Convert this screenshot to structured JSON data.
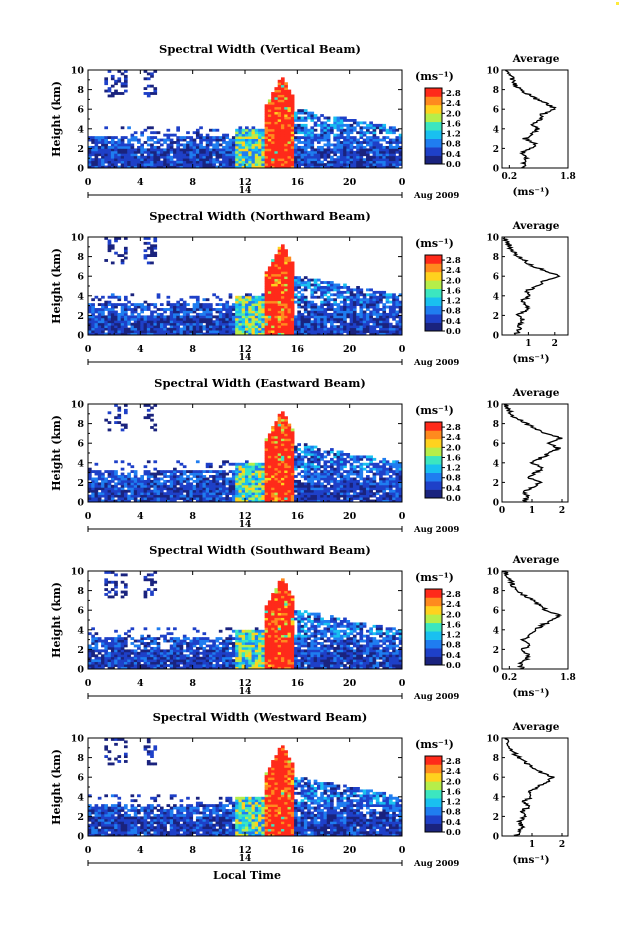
{
  "figure": {
    "x_axis_label": "Local Time",
    "date_marker": "14",
    "date_label": "Aug 2009",
    "unit_label": "(ms⁻¹)",
    "avg_xunit": "(ms⁻¹)",
    "ylabel": "Height (km)"
  },
  "chart_data": [
    {
      "type": "heatmap",
      "title": "Spectral Width (Vertical Beam)",
      "xlabel": "",
      "ylabel": "Height (km)",
      "xticks": [
        "0",
        "4",
        "8",
        "12",
        "16",
        "20",
        "0"
      ],
      "xlim": [
        0,
        24
      ],
      "yticks": [
        "0",
        "2",
        "4",
        "6",
        "8",
        "10"
      ],
      "ylim": [
        0,
        10
      ],
      "colorbar": {
        "ticks": [
          "0.0",
          "0.4",
          "0.8",
          "1.2",
          "1.6",
          "2.0",
          "2.4",
          "2.8"
        ],
        "range": [
          0,
          3.0
        ]
      },
      "average": {
        "title": "Average",
        "xlim": [
          0,
          1.8
        ],
        "xticks": [
          "0.2",
          "1.8"
        ],
        "xlabel": "(ms⁻¹)",
        "height": [
          0,
          0.5,
          1,
          1.5,
          2,
          2.5,
          3,
          3.5,
          4,
          4.5,
          5,
          5.5,
          6,
          6.5,
          7,
          7.5,
          8,
          8.5,
          9,
          9.5,
          10
        ],
        "value": [
          0.55,
          0.6,
          0.7,
          0.55,
          0.75,
          0.95,
          0.6,
          0.85,
          1.0,
          0.8,
          1.05,
          1.1,
          1.45,
          1.25,
          0.95,
          0.75,
          0.5,
          0.35,
          0.3,
          0.2,
          0.15
        ]
      }
    },
    {
      "type": "heatmap",
      "title": "Spectral Width (Northward Beam)",
      "xlabel": "",
      "ylabel": "Height (km)",
      "xticks": [
        "0",
        "4",
        "8",
        "12",
        "16",
        "20",
        "0"
      ],
      "xlim": [
        0,
        24
      ],
      "yticks": [
        "0",
        "2",
        "4",
        "6",
        "8",
        "10"
      ],
      "ylim": [
        0,
        10
      ],
      "colorbar": {
        "ticks": [
          "0.0",
          "0.4",
          "0.8",
          "1.2",
          "1.6",
          "2.0",
          "2.4",
          "2.8"
        ],
        "range": [
          0,
          3.0
        ]
      },
      "average": {
        "title": "Average",
        "xlim": [
          0,
          2.5
        ],
        "xticks": [
          "1",
          "2"
        ],
        "xlabel": "(ms⁻¹)",
        "height": [
          0,
          0.5,
          1,
          1.5,
          2,
          2.5,
          3,
          3.5,
          4,
          4.5,
          5,
          5.5,
          6,
          6.5,
          7,
          7.5,
          8,
          8.5,
          9,
          9.5,
          10
        ],
        "value": [
          0.5,
          0.65,
          0.6,
          0.8,
          0.55,
          0.9,
          1.0,
          0.7,
          1.1,
          0.95,
          1.3,
          1.6,
          2.2,
          1.7,
          1.2,
          0.9,
          0.6,
          0.4,
          0.3,
          0.2,
          0.1
        ]
      }
    },
    {
      "type": "heatmap",
      "title": "Spectral Width (Eastward Beam)",
      "xlabel": "",
      "ylabel": "Height (km)",
      "xticks": [
        "0",
        "4",
        "8",
        "12",
        "16",
        "20",
        "0"
      ],
      "xlim": [
        0,
        24
      ],
      "yticks": [
        "0",
        "2",
        "4",
        "6",
        "8",
        "10"
      ],
      "ylim": [
        0,
        10
      ],
      "colorbar": {
        "ticks": [
          "0.0",
          "0.4",
          "0.8",
          "1.2",
          "1.6",
          "2.0",
          "2.4",
          "2.8"
        ],
        "range": [
          0,
          3.0
        ]
      },
      "average": {
        "title": "Average",
        "xlim": [
          0,
          2.2
        ],
        "xticks": [
          "0",
          "1",
          "2"
        ],
        "xlabel": "",
        "height": [
          0,
          0.5,
          1,
          1.5,
          2,
          2.5,
          3,
          3.5,
          4,
          4.5,
          5,
          5.5,
          6,
          6.5,
          7,
          7.5,
          8,
          8.5,
          9,
          9.5,
          10
        ],
        "value": [
          0.7,
          0.9,
          0.75,
          1.0,
          1.3,
          0.9,
          1.1,
          1.4,
          1.0,
          1.3,
          1.6,
          1.9,
          1.5,
          2.0,
          1.4,
          1.1,
          0.8,
          0.5,
          0.3,
          0.2,
          0.1
        ]
      }
    },
    {
      "type": "heatmap",
      "title": "Spectral Width (Southward Beam)",
      "xlabel": "",
      "ylabel": "Height (km)",
      "xticks": [
        "0",
        "4",
        "8",
        "12",
        "16",
        "20",
        "0"
      ],
      "xlim": [
        0,
        24
      ],
      "yticks": [
        "0",
        "2",
        "4",
        "6",
        "8",
        "10"
      ],
      "ylim": [
        0,
        10
      ],
      "colorbar": {
        "ticks": [
          "0.0",
          "0.4",
          "0.8",
          "1.2",
          "1.6",
          "2.0",
          "2.4",
          "2.8"
        ],
        "range": [
          0,
          3.0
        ]
      },
      "average": {
        "title": "Average",
        "xlim": [
          0,
          1.8
        ],
        "xticks": [
          "0.2",
          "1.8"
        ],
        "xlabel": "(ms⁻¹)",
        "height": [
          0,
          0.5,
          1,
          1.5,
          2,
          2.5,
          3,
          3.5,
          4,
          4.5,
          5,
          5.5,
          6,
          6.5,
          7,
          7.5,
          8,
          8.5,
          9,
          9.5,
          10
        ],
        "value": [
          0.55,
          0.5,
          0.65,
          0.7,
          0.55,
          0.8,
          0.6,
          0.75,
          0.9,
          1.1,
          1.4,
          1.6,
          1.2,
          1.0,
          0.85,
          0.6,
          0.45,
          0.3,
          0.25,
          0.15,
          0.1
        ]
      }
    },
    {
      "type": "heatmap",
      "title": "Spectral Width (Westward Beam)",
      "xlabel": "Local Time",
      "ylabel": "Height (km)",
      "xticks": [
        "0",
        "4",
        "8",
        "12",
        "16",
        "20",
        "0"
      ],
      "xlim": [
        0,
        24
      ],
      "yticks": [
        "0",
        "2",
        "4",
        "6",
        "8",
        "10"
      ],
      "ylim": [
        0,
        10
      ],
      "colorbar": {
        "ticks": [
          "0.0",
          "0.4",
          "0.8",
          "1.2",
          "1.6",
          "2.0",
          "2.4",
          "2.8"
        ],
        "range": [
          0,
          3.0
        ]
      },
      "average": {
        "title": "Average",
        "xlim": [
          0,
          2.2
        ],
        "xticks": [
          "1",
          "2"
        ],
        "xlabel": "(ms⁻¹)",
        "height": [
          0,
          0.5,
          1,
          1.5,
          2,
          2.5,
          3,
          3.5,
          4,
          4.5,
          5,
          5.5,
          6,
          6.5,
          7,
          7.5,
          8,
          8.5,
          9,
          9.5,
          10
        ],
        "value": [
          0.5,
          0.6,
          0.7,
          0.55,
          0.8,
          0.65,
          0.9,
          0.7,
          1.0,
          0.85,
          1.2,
          1.5,
          1.7,
          1.3,
          1.0,
          0.8,
          0.55,
          0.4,
          0.25,
          0.15,
          0.1
        ]
      }
    }
  ]
}
